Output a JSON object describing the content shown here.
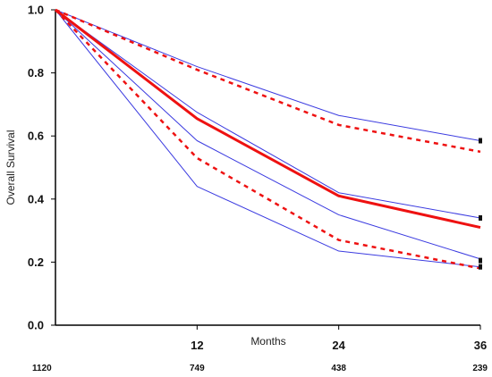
{
  "chart_data": {
    "type": "line",
    "title": "",
    "xlabel": "Months",
    "ylabel": "Overall Survival",
    "xlim": [
      0,
      36
    ],
    "ylim": [
      0,
      1
    ],
    "yticks": [
      "0.0",
      "0.2",
      "0.4",
      "0.6",
      "0.8",
      "1.0"
    ],
    "xticks": [
      "12",
      "24",
      "36"
    ],
    "number_at_risk": [
      "1120",
      "749",
      "438",
      "239"
    ],
    "series": [
      {
        "style": "solid",
        "color": "#3a3ae0",
        "width": 1,
        "x": [
          0,
          12,
          24,
          36
        ],
        "y": [
          1.0,
          0.82,
          0.665,
          0.585
        ]
      },
      {
        "style": "solid",
        "color": "#3a3ae0",
        "width": 1,
        "x": [
          0,
          12,
          24,
          36
        ],
        "y": [
          1.0,
          0.675,
          0.42,
          0.34
        ]
      },
      {
        "style": "solid",
        "color": "#3a3ae0",
        "width": 1,
        "x": [
          0,
          12,
          24,
          36
        ],
        "y": [
          1.0,
          0.585,
          0.35,
          0.21
        ]
      },
      {
        "style": "solid",
        "color": "#3a3ae0",
        "width": 1,
        "x": [
          0,
          12,
          24,
          36
        ],
        "y": [
          1.0,
          0.44,
          0.235,
          0.185
        ]
      },
      {
        "style": "dashed",
        "color": "#ee1111",
        "width": 2.5,
        "x": [
          0,
          12,
          24,
          36
        ],
        "y": [
          1.0,
          0.81,
          0.635,
          0.55
        ]
      },
      {
        "style": "solid",
        "color": "#ee1111",
        "width": 3,
        "x": [
          0,
          12,
          24,
          36
        ],
        "y": [
          1.0,
          0.655,
          0.41,
          0.31
        ]
      },
      {
        "style": "dashed",
        "color": "#ee1111",
        "width": 2.5,
        "x": [
          0,
          12,
          24,
          36
        ],
        "y": [
          1.0,
          0.53,
          0.27,
          0.18
        ]
      }
    ],
    "end_markers": [
      0.585,
      0.34,
      0.205,
      0.185
    ]
  }
}
